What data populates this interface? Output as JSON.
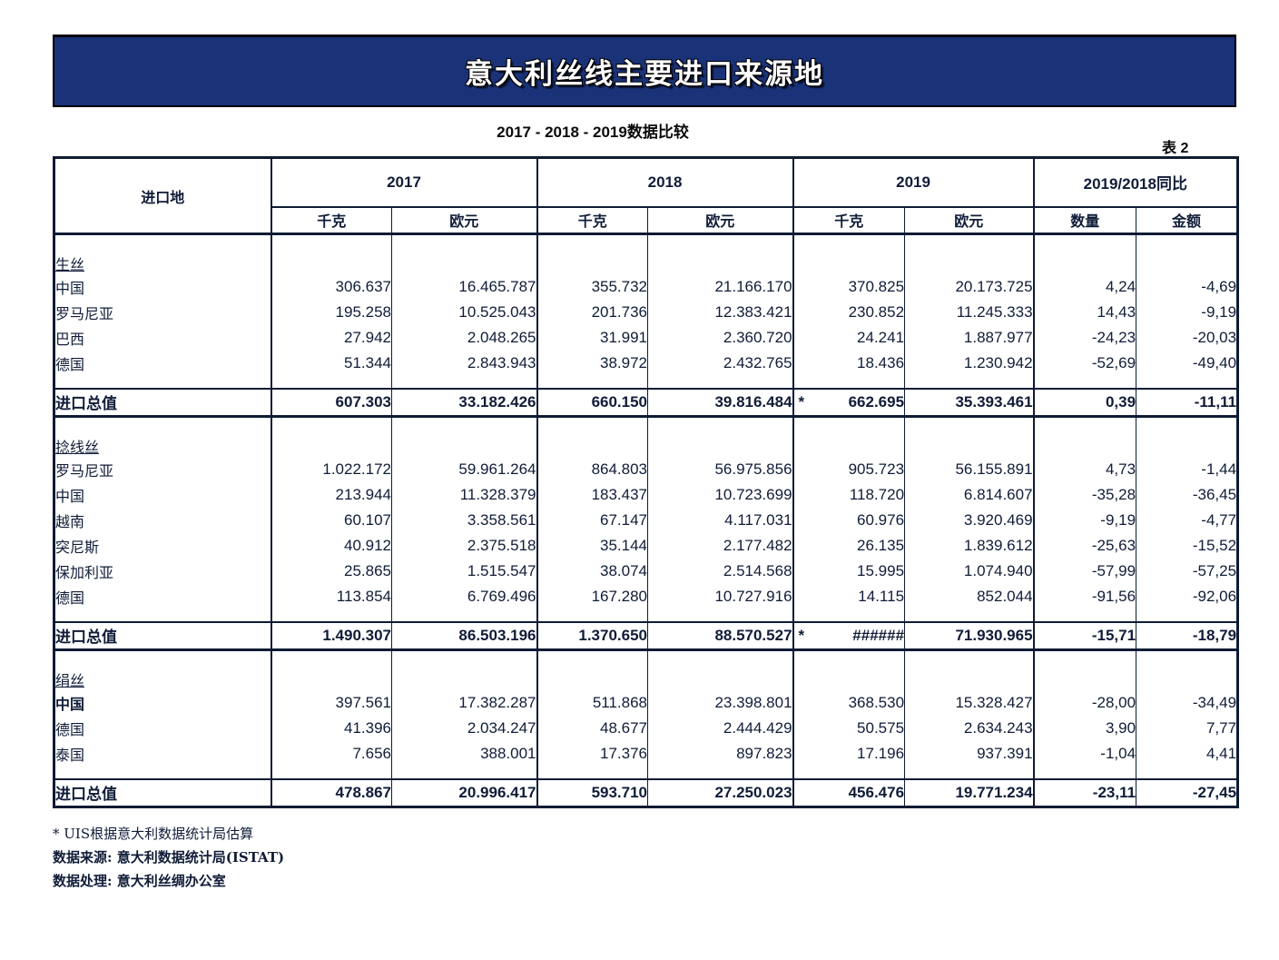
{
  "banner": {
    "title": "意大利丝线主要进口来源地"
  },
  "subtitle": "2017 - 2018 - 2019数据比较",
  "table_label": "表 2",
  "table": {
    "star_marker": "*",
    "header": {
      "place": "进口地",
      "years": [
        "2017",
        "2018",
        "2019"
      ],
      "yoy": "2019/2018同比",
      "units": [
        "千克",
        "欧元",
        "千克",
        "欧元",
        "千克",
        "欧元",
        "数量",
        "金额"
      ]
    },
    "sections": [
      {
        "name": "生丝",
        "rows": [
          {
            "label": "中国",
            "v": [
              "306.637",
              "16.465.787",
              "355.732",
              "21.166.170",
              "370.825",
              "20.173.725",
              "4,24",
              "-4,69"
            ]
          },
          {
            "label": "罗马尼亚",
            "v": [
              "195.258",
              "10.525.043",
              "201.736",
              "12.383.421",
              "230.852",
              "11.245.333",
              "14,43",
              "-9,19"
            ]
          },
          {
            "label": "巴西",
            "v": [
              "27.942",
              "2.048.265",
              "31.991",
              "2.360.720",
              "24.241",
              "1.887.977",
              "-24,23",
              "-20,03"
            ]
          },
          {
            "label": "德国",
            "v": [
              "51.344",
              "2.843.943",
              "38.972",
              "2.432.765",
              "18.436",
              "1.230.942",
              "-52,69",
              "-49,40"
            ]
          }
        ],
        "total": {
          "label": "进口总值",
          "star": true,
          "v": [
            "607.303",
            "33.182.426",
            "660.150",
            "39.816.484",
            "662.695",
            "35.393.461",
            "0,39",
            "-11,11"
          ]
        }
      },
      {
        "name": "捻线丝",
        "rows": [
          {
            "label": "罗马尼亚",
            "v": [
              "1.022.172",
              "59.961.264",
              "864.803",
              "56.975.856",
              "905.723",
              "56.155.891",
              "4,73",
              "-1,44"
            ]
          },
          {
            "label": "中国",
            "v": [
              "213.944",
              "11.328.379",
              "183.437",
              "10.723.699",
              "118.720",
              "6.814.607",
              "-35,28",
              "-36,45"
            ]
          },
          {
            "label": "越南",
            "v": [
              "60.107",
              "3.358.561",
              "67.147",
              "4.117.031",
              "60.976",
              "3.920.469",
              "-9,19",
              "-4,77"
            ]
          },
          {
            "label": "突尼斯",
            "v": [
              "40.912",
              "2.375.518",
              "35.144",
              "2.177.482",
              "26.135",
              "1.839.612",
              "-25,63",
              "-15,52"
            ]
          },
          {
            "label": "保加利亚",
            "v": [
              "25.865",
              "1.515.547",
              "38.074",
              "2.514.568",
              "15.995",
              "1.074.940",
              "-57,99",
              "-57,25"
            ]
          },
          {
            "label": "德国",
            "v": [
              "113.854",
              "6.769.496",
              "167.280",
              "10.727.916",
              "14.115",
              "852.044",
              "-91,56",
              "-92,06"
            ]
          }
        ],
        "total": {
          "label": "进口总值",
          "star": true,
          "v": [
            "1.490.307",
            "86.503.196",
            "1.370.650",
            "88.570.527",
            "######",
            "71.930.965",
            "-15,71",
            "-18,79"
          ]
        }
      },
      {
        "name": "绢丝",
        "rows": [
          {
            "label": "中国",
            "bold": true,
            "v": [
              "397.561",
              "17.382.287",
              "511.868",
              "23.398.801",
              "368.530",
              "15.328.427",
              "-28,00",
              "-34,49"
            ]
          },
          {
            "label": "德国",
            "v": [
              "41.396",
              "2.034.247",
              "48.677",
              "2.444.429",
              "50.575",
              "2.634.243",
              "3,90",
              "7,77"
            ]
          },
          {
            "label": "泰国",
            "v": [
              "7.656",
              "388.001",
              "17.376",
              "897.823",
              "17.196",
              "937.391",
              "-1,04",
              "4,41"
            ]
          }
        ],
        "total": {
          "label": "进口总值",
          "star": false,
          "v": [
            "478.867",
            "20.996.417",
            "593.710",
            "27.250.023",
            "456.476",
            "19.771.234",
            "-23,11",
            "-27,45"
          ]
        }
      }
    ]
  },
  "footnotes": [
    {
      "text": "* UIS根据意大利数据统计局估算",
      "bold": false
    },
    {
      "text": "数据来源: 意大利数据统计局(ISTAT)",
      "bold": true
    },
    {
      "text": "数据处理: 意大利丝绸办公室",
      "bold": true
    }
  ]
}
